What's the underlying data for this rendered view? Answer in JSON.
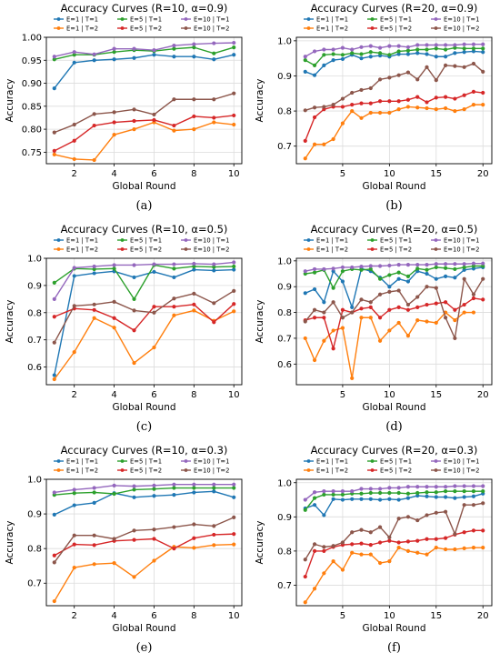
{
  "legend_labels": [
    "E=1 | T=1",
    "E=5 | T=1",
    "E=10 | T=1",
    "E=1 | T=2",
    "E=5 | T=2",
    "E=10 | T=2"
  ],
  "colors": {
    "E1T1": "#1f77b4",
    "E5T1": "#2ca02c",
    "E10T1": "#9467bd",
    "E1T2": "#ff7f0e",
    "E5T2": "#d62728",
    "E10T2": "#8c564b"
  },
  "chart_data": [
    {
      "id": "a",
      "caption": "(a)",
      "type": "line",
      "title": "Accuracy Curves (R=10, α=0.9)",
      "xlabel": "Global Round",
      "ylabel": "Accuracy",
      "xlim": [
        0.6,
        10.4
      ],
      "ylim": [
        0.725,
        1.0
      ],
      "xticks": [
        2,
        4,
        6,
        8,
        10
      ],
      "yticks": [
        0.75,
        0.8,
        0.85,
        0.9,
        0.95,
        1.0
      ],
      "ytick_labels": [
        "0.75",
        "0.80",
        "0.85",
        "0.90",
        "0.95",
        "1.00"
      ],
      "grid": true,
      "legend": "top",
      "x": [
        1,
        2,
        3,
        4,
        5,
        6,
        7,
        8,
        9,
        10
      ],
      "series": [
        {
          "name": "E=1 | T=1",
          "color_key": "E1T1",
          "values": [
            0.889,
            0.945,
            0.95,
            0.952,
            0.955,
            0.962,
            0.958,
            0.958,
            0.952,
            0.962
          ]
        },
        {
          "name": "E=5 | T=1",
          "color_key": "E5T1",
          "values": [
            0.952,
            0.962,
            0.962,
            0.968,
            0.972,
            0.97,
            0.975,
            0.978,
            0.965,
            0.978
          ]
        },
        {
          "name": "E=10 | T=1",
          "color_key": "E10T1",
          "values": [
            0.958,
            0.968,
            0.963,
            0.975,
            0.975,
            0.972,
            0.982,
            0.985,
            0.987,
            0.988
          ]
        },
        {
          "name": "E=1 | T=2",
          "color_key": "E1T2",
          "values": [
            0.745,
            0.735,
            0.733,
            0.788,
            0.8,
            0.815,
            0.797,
            0.8,
            0.815,
            0.81
          ]
        },
        {
          "name": "E=5 | T=2",
          "color_key": "E5T2",
          "values": [
            0.753,
            0.775,
            0.808,
            0.815,
            0.818,
            0.82,
            0.808,
            0.828,
            0.825,
            0.83
          ]
        },
        {
          "name": "E=10 | T=2",
          "color_key": "E10T2",
          "values": [
            0.793,
            0.81,
            0.833,
            0.837,
            0.843,
            0.832,
            0.865,
            0.865,
            0.865,
            0.878
          ]
        }
      ]
    },
    {
      "id": "b",
      "caption": "(b)",
      "type": "line",
      "title": "Accuracy Curves (R=20, α=0.9)",
      "xlabel": "Global Round",
      "ylabel": "Accuracy",
      "xlim": [
        0.05,
        20.95
      ],
      "ylim": [
        0.65,
        1.01
      ],
      "xticks": [
        5,
        10,
        15,
        20
      ],
      "yticks": [
        0.7,
        0.8,
        0.9,
        1.0
      ],
      "ytick_labels": [
        "0.7",
        "0.8",
        "0.9",
        "1.0"
      ],
      "grid": true,
      "legend": "top",
      "x": [
        1,
        2,
        3,
        4,
        5,
        6,
        7,
        8,
        9,
        10,
        11,
        12,
        13,
        14,
        15,
        16,
        17,
        18,
        19,
        20
      ],
      "series": [
        {
          "name": "E=1 | T=1",
          "color_key": "E1T1",
          "values": [
            0.912,
            0.902,
            0.93,
            0.945,
            0.948,
            0.96,
            0.95,
            0.955,
            0.958,
            0.955,
            0.962,
            0.962,
            0.965,
            0.962,
            0.955,
            0.955,
            0.965,
            0.968,
            0.97,
            0.968
          ]
        },
        {
          "name": "E=5 | T=1",
          "color_key": "E5T1",
          "values": [
            0.945,
            0.93,
            0.96,
            0.962,
            0.96,
            0.965,
            0.962,
            0.968,
            0.965,
            0.96,
            0.97,
            0.972,
            0.975,
            0.975,
            0.978,
            0.975,
            0.98,
            0.978,
            0.978,
            0.978
          ]
        },
        {
          "name": "E=10 | T=1",
          "color_key": "E10T1",
          "values": [
            0.955,
            0.97,
            0.975,
            0.975,
            0.98,
            0.975,
            0.982,
            0.985,
            0.98,
            0.985,
            0.985,
            0.982,
            0.988,
            0.988,
            0.988,
            0.988,
            0.988,
            0.99,
            0.99,
            0.99
          ]
        },
        {
          "name": "E=1 | T=2",
          "color_key": "E1T2",
          "values": [
            0.665,
            0.705,
            0.705,
            0.72,
            0.765,
            0.8,
            0.78,
            0.795,
            0.795,
            0.795,
            0.805,
            0.812,
            0.81,
            0.808,
            0.805,
            0.808,
            0.8,
            0.805,
            0.818,
            0.818
          ]
        },
        {
          "name": "E=5 | T=2",
          "color_key": "E5T2",
          "values": [
            0.715,
            0.782,
            0.805,
            0.812,
            0.812,
            0.818,
            0.822,
            0.822,
            0.828,
            0.828,
            0.828,
            0.832,
            0.84,
            0.825,
            0.838,
            0.84,
            0.835,
            0.845,
            0.855,
            0.852
          ]
        },
        {
          "name": "E=10 | T=2",
          "color_key": "E10T2",
          "values": [
            0.802,
            0.81,
            0.812,
            0.818,
            0.835,
            0.852,
            0.86,
            0.865,
            0.89,
            0.895,
            0.902,
            0.91,
            0.89,
            0.925,
            0.888,
            0.93,
            0.928,
            0.925,
            0.935,
            0.912
          ]
        }
      ]
    },
    {
      "id": "c",
      "caption": "(c)",
      "type": "line",
      "title": "Accuracy Curves (R=10, α=0.5)",
      "xlabel": "Global Round",
      "ylabel": "Accuracy",
      "xlim": [
        0.6,
        10.4
      ],
      "ylim": [
        0.535,
        1.0
      ],
      "xticks": [
        2,
        4,
        6,
        8,
        10
      ],
      "yticks": [
        0.6,
        0.7,
        0.8,
        0.9,
        1.0
      ],
      "ytick_labels": [
        "0.6",
        "0.7",
        "0.8",
        "0.9",
        "1.0"
      ],
      "grid": true,
      "legend": "top",
      "x": [
        1,
        2,
        3,
        4,
        5,
        6,
        7,
        8,
        9,
        10
      ],
      "series": [
        {
          "name": "E=1 | T=1",
          "color_key": "E1T1",
          "values": [
            0.57,
            0.935,
            0.945,
            0.952,
            0.93,
            0.95,
            0.93,
            0.958,
            0.955,
            0.958
          ]
        },
        {
          "name": "E=5 | T=1",
          "color_key": "E5T1",
          "values": [
            0.91,
            0.962,
            0.96,
            0.962,
            0.85,
            0.975,
            0.962,
            0.97,
            0.968,
            0.97
          ]
        },
        {
          "name": "E=10 | T=1",
          "color_key": "E10T1",
          "values": [
            0.85,
            0.965,
            0.97,
            0.975,
            0.975,
            0.978,
            0.978,
            0.98,
            0.978,
            0.985
          ]
        },
        {
          "name": "E=1 | T=2",
          "color_key": "E1T2",
          "values": [
            0.555,
            0.655,
            0.78,
            0.745,
            0.615,
            0.672,
            0.79,
            0.808,
            0.77,
            0.805
          ]
        },
        {
          "name": "E=5 | T=2",
          "color_key": "E5T2",
          "values": [
            0.785,
            0.815,
            0.81,
            0.78,
            0.735,
            0.822,
            0.822,
            0.83,
            0.765,
            0.832
          ]
        },
        {
          "name": "E=10 | T=2",
          "color_key": "E10T2",
          "values": [
            0.69,
            0.825,
            0.83,
            0.84,
            0.808,
            0.8,
            0.852,
            0.87,
            0.835,
            0.88
          ]
        }
      ]
    },
    {
      "id": "d",
      "caption": "(d)",
      "type": "line",
      "title": "Accuracy Curves (R=20, α=0.5)",
      "xlabel": "Global Round",
      "ylabel": "Accuracy",
      "xlim": [
        0.05,
        20.95
      ],
      "ylim": [
        0.52,
        1.01
      ],
      "xticks": [
        5,
        10,
        15,
        20
      ],
      "yticks": [
        0.6,
        0.7,
        0.8,
        0.9,
        1.0
      ],
      "ytick_labels": [
        "0.6",
        "0.7",
        "0.8",
        "0.9",
        "1.0"
      ],
      "grid": true,
      "legend": "top",
      "x": [
        1,
        2,
        3,
        4,
        5,
        6,
        7,
        8,
        9,
        10,
        11,
        12,
        13,
        14,
        15,
        16,
        17,
        18,
        19,
        20
      ],
      "series": [
        {
          "name": "E=1 | T=1",
          "color_key": "E1T1",
          "values": [
            0.875,
            0.89,
            0.84,
            0.96,
            0.92,
            0.82,
            0.97,
            0.96,
            0.935,
            0.9,
            0.93,
            0.92,
            0.96,
            0.95,
            0.93,
            0.94,
            0.935,
            0.965,
            0.97,
            0.975
          ]
        },
        {
          "name": "E=5 | T=1",
          "color_key": "E5T1",
          "values": [
            0.95,
            0.955,
            0.965,
            0.895,
            0.96,
            0.968,
            0.965,
            0.968,
            0.93,
            0.945,
            0.955,
            0.94,
            0.97,
            0.965,
            0.975,
            0.972,
            0.968,
            0.975,
            0.98,
            0.98
          ]
        },
        {
          "name": "E=10 | T=1",
          "color_key": "E10T1",
          "values": [
            0.96,
            0.968,
            0.968,
            0.97,
            0.975,
            0.975,
            0.978,
            0.98,
            0.98,
            0.982,
            0.985,
            0.985,
            0.985,
            0.985,
            0.988,
            0.988,
            0.988,
            0.988,
            0.99,
            0.99
          ]
        },
        {
          "name": "E=1 | T=2",
          "color_key": "E1T2",
          "values": [
            0.7,
            0.615,
            0.69,
            0.73,
            0.74,
            0.545,
            0.78,
            0.78,
            0.69,
            0.73,
            0.76,
            0.71,
            0.77,
            0.765,
            0.76,
            0.8,
            0.77,
            0.8,
            0.8,
            null
          ]
        },
        {
          "name": "E=5 | T=2",
          "color_key": "E5T2",
          "values": [
            0.77,
            0.78,
            0.78,
            0.66,
            0.81,
            0.8,
            0.815,
            0.82,
            0.78,
            0.81,
            0.82,
            0.81,
            0.82,
            0.83,
            0.835,
            0.84,
            0.81,
            0.83,
            0.855,
            0.85
          ]
        },
        {
          "name": "E=10 | T=2",
          "color_key": "E10T2",
          "values": [
            0.765,
            0.81,
            0.8,
            0.84,
            0.78,
            0.8,
            0.85,
            0.84,
            0.87,
            0.88,
            0.885,
            0.83,
            0.86,
            0.9,
            0.895,
            0.78,
            0.7,
            0.93,
            0.87,
            0.93
          ]
        }
      ]
    },
    {
      "id": "e",
      "caption": "(e)",
      "type": "line",
      "title": "Accuracy Curves (R=10, α=0.3)",
      "xlabel": "Global Round",
      "ylabel": "Accuracy",
      "xlim": [
        0.6,
        10.4
      ],
      "ylim": [
        0.635,
        1.0
      ],
      "xticks": [
        2,
        4,
        6,
        8,
        10
      ],
      "yticks": [
        0.7,
        0.8,
        0.9,
        1.0
      ],
      "ytick_labels": [
        "0.7",
        "0.8",
        "0.9",
        "1.0"
      ],
      "grid": true,
      "legend": "top",
      "x": [
        1,
        2,
        3,
        4,
        5,
        6,
        7,
        8,
        9,
        10
      ],
      "series": [
        {
          "name": "E=1 | T=1",
          "color_key": "E1T1",
          "values": [
            0.898,
            0.925,
            0.932,
            0.96,
            0.948,
            0.952,
            0.955,
            0.962,
            0.965,
            0.948
          ]
        },
        {
          "name": "E=5 | T=1",
          "color_key": "E5T1",
          "values": [
            0.955,
            0.96,
            0.962,
            0.958,
            0.97,
            0.972,
            0.975,
            0.975,
            0.975,
            0.975
          ]
        },
        {
          "name": "E=10 | T=1",
          "color_key": "E10T1",
          "values": [
            0.962,
            0.97,
            0.975,
            0.982,
            0.98,
            0.982,
            0.985,
            0.985,
            0.985,
            0.985
          ]
        },
        {
          "name": "E=1 | T=2",
          "color_key": "E1T2",
          "values": [
            0.648,
            0.745,
            0.755,
            0.758,
            0.718,
            0.765,
            0.805,
            0.802,
            0.81,
            0.812
          ]
        },
        {
          "name": "E=5 | T=2",
          "color_key": "E5T2",
          "values": [
            0.78,
            0.812,
            0.81,
            0.822,
            0.825,
            0.828,
            0.8,
            0.83,
            0.84,
            0.842
          ]
        },
        {
          "name": "E=10 | T=2",
          "color_key": "E10T2",
          "values": [
            0.76,
            0.838,
            0.838,
            0.828,
            0.852,
            0.855,
            0.862,
            0.87,
            0.865,
            0.89
          ]
        }
      ]
    },
    {
      "id": "f",
      "caption": "(f)",
      "type": "line",
      "title": "Accuracy Curves (R=20, α=0.3)",
      "xlabel": "Global Round",
      "ylabel": "Accuracy",
      "xlim": [
        0.05,
        20.95
      ],
      "ylim": [
        0.64,
        1.01
      ],
      "xticks": [
        5,
        10,
        15,
        20
      ],
      "yticks": [
        0.7,
        0.8,
        0.9,
        1.0
      ],
      "ytick_labels": [
        "0.7",
        "0.8",
        "0.9",
        "1.0"
      ],
      "grid": true,
      "legend": "top",
      "x": [
        1,
        2,
        3,
        4,
        5,
        6,
        7,
        8,
        9,
        10,
        11,
        12,
        13,
        14,
        15,
        16,
        17,
        18,
        19,
        20
      ],
      "series": [
        {
          "name": "E=1 | T=1",
          "color_key": "E1T1",
          "values": [
            0.925,
            0.935,
            0.905,
            0.952,
            0.95,
            0.952,
            0.952,
            0.952,
            0.95,
            0.952,
            0.95,
            0.955,
            0.962,
            0.96,
            0.958,
            0.958,
            0.955,
            0.958,
            0.96,
            0.968
          ]
        },
        {
          "name": "E=5 | T=1",
          "color_key": "E5T1",
          "values": [
            0.92,
            0.955,
            0.965,
            0.965,
            0.965,
            0.968,
            0.968,
            0.97,
            0.97,
            0.97,
            0.97,
            0.968,
            0.97,
            0.972,
            0.972,
            0.975,
            0.975,
            0.975,
            0.975,
            0.975
          ]
        },
        {
          "name": "E=10 | T=1",
          "color_key": "E10T1",
          "values": [
            0.95,
            0.972,
            0.975,
            0.975,
            0.975,
            0.975,
            0.982,
            0.982,
            0.982,
            0.985,
            0.985,
            0.988,
            0.988,
            0.988,
            0.988,
            0.988,
            0.99,
            0.99,
            0.99,
            0.99
          ]
        },
        {
          "name": "E=1 | T=2",
          "color_key": "E1T2",
          "values": [
            0.65,
            0.69,
            0.735,
            0.77,
            0.745,
            0.795,
            0.79,
            0.79,
            0.765,
            0.77,
            0.81,
            0.8,
            0.795,
            0.79,
            0.81,
            0.805,
            0.805,
            0.808,
            0.81,
            0.81
          ]
        },
        {
          "name": "E=5 | T=2",
          "color_key": "E5T2",
          "values": [
            0.725,
            0.8,
            0.8,
            0.812,
            0.818,
            0.82,
            0.822,
            0.818,
            0.825,
            0.83,
            0.825,
            0.828,
            0.83,
            0.835,
            0.835,
            0.838,
            0.848,
            0.855,
            0.86,
            0.86
          ]
        },
        {
          "name": "E=10 | T=2",
          "color_key": "E10T2",
          "values": [
            0.775,
            0.82,
            0.812,
            0.815,
            0.825,
            0.855,
            0.862,
            0.855,
            0.87,
            0.84,
            0.895,
            0.9,
            0.89,
            0.905,
            0.912,
            0.915,
            0.85,
            0.935,
            0.935,
            0.94
          ]
        }
      ]
    }
  ]
}
